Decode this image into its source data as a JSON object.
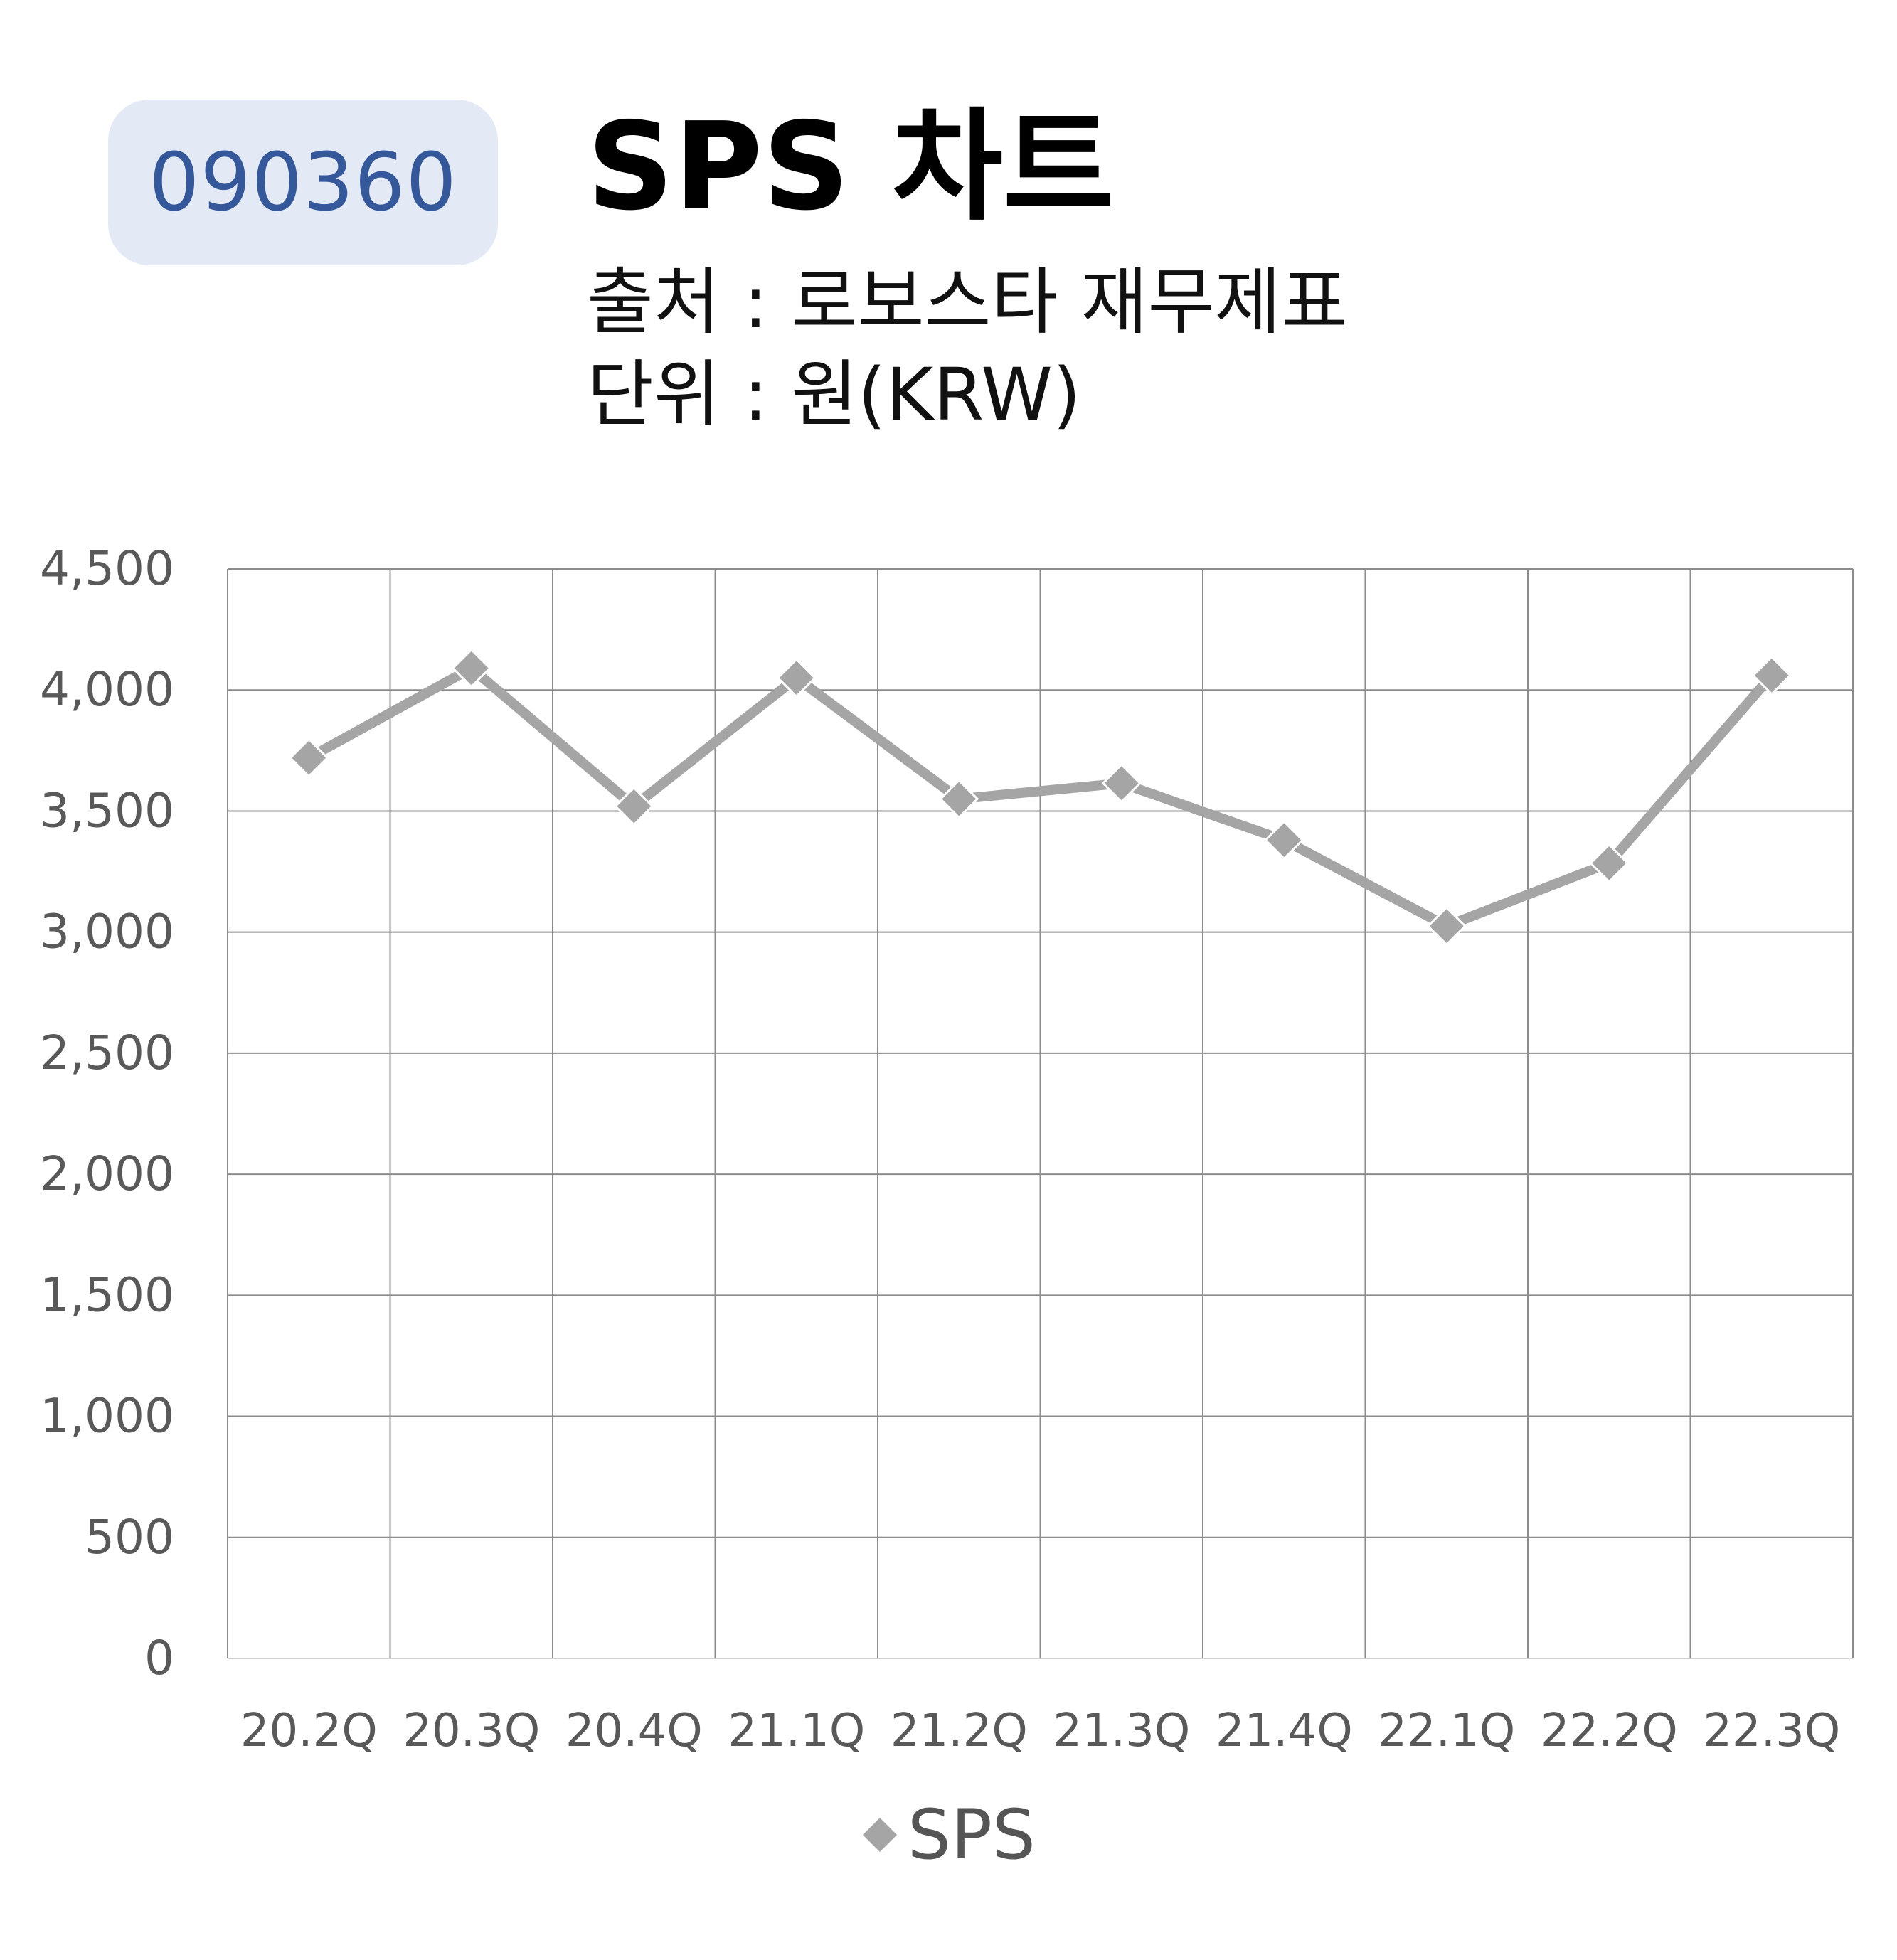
{
  "badge": {
    "code": "090360"
  },
  "header": {
    "title": "SPS 차트",
    "source": "출처 : 로보스타 재무제표",
    "unit": "단위 : 원(KRW)"
  },
  "colors": {
    "badge_bg": "#e4eaf5",
    "badge_text": "#34589a",
    "series": "#a5a5a5",
    "grid": "#888888"
  },
  "chart_data": {
    "type": "line",
    "categories": [
      "20.2Q",
      "20.3Q",
      "20.4Q",
      "21.1Q",
      "21.2Q",
      "21.3Q",
      "21.4Q",
      "22.1Q",
      "22.2Q",
      "22.3Q"
    ],
    "series": [
      {
        "name": "SPS",
        "values": [
          3720,
          4090,
          3520,
          4050,
          3550,
          3615,
          3380,
          3025,
          3285,
          4060
        ]
      }
    ],
    "y_ticks": [
      "0",
      "500",
      "1,000",
      "1,500",
      "2,000",
      "2,500",
      "3,000",
      "3,500",
      "4,000",
      "4,500"
    ],
    "ylim": [
      0,
      4500
    ],
    "grid": true,
    "legend": "bottom",
    "marker": "diamond"
  }
}
